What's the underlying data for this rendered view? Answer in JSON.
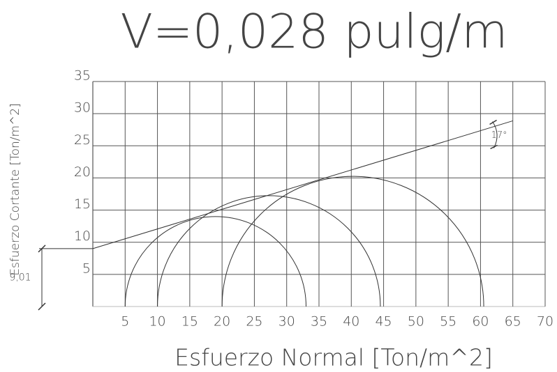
{
  "chart_data": {
    "type": "mohr",
    "title": "V=0,028 pulg/m",
    "x_label": "Esfuerzo Normal [Ton/m^2]",
    "y_label": "Esfuerzo Cortante [Ton/m^2]",
    "xlim": [
      0,
      70
    ],
    "ylim": [
      0,
      35
    ],
    "xticks": [
      5,
      10,
      15,
      20,
      25,
      30,
      35,
      40,
      45,
      50,
      55,
      60,
      65,
      70
    ],
    "yticks": [
      5,
      10,
      15,
      20,
      25,
      30,
      35
    ],
    "grid": true,
    "color": "#333333",
    "circles": [
      {
        "sigma3": 5,
        "sigma1": 33
      },
      {
        "sigma3": 10,
        "sigma1": 44.5
      },
      {
        "sigma3": 20,
        "sigma1": 60.5
      }
    ],
    "envelope": {
      "cohesion": {
        "value": 9.01,
        "label": "9,01"
      },
      "angle": {
        "value": 17,
        "label": "17°"
      },
      "x_end": 65
    }
  }
}
